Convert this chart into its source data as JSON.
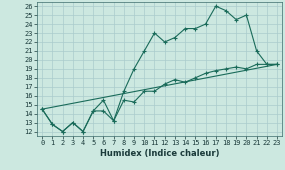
{
  "xlabel": "Humidex (Indice chaleur)",
  "background_color": "#cce8e0",
  "grid_color": "#aacccc",
  "line_color": "#1a6b5a",
  "xlim": [
    -0.5,
    23.5
  ],
  "ylim": [
    11.5,
    26.5
  ],
  "xticks": [
    0,
    1,
    2,
    3,
    4,
    5,
    6,
    7,
    8,
    9,
    10,
    11,
    12,
    13,
    14,
    15,
    16,
    17,
    18,
    19,
    20,
    21,
    22,
    23
  ],
  "yticks": [
    12,
    13,
    14,
    15,
    16,
    17,
    18,
    19,
    20,
    21,
    22,
    23,
    24,
    25,
    26
  ],
  "trend_x": [
    0,
    23
  ],
  "trend_y": [
    14.5,
    19.5
  ],
  "upper_x": [
    0,
    1,
    2,
    3,
    4,
    5,
    6,
    7,
    8,
    9,
    10,
    11,
    12,
    13,
    14,
    15,
    16,
    17,
    18,
    19,
    20,
    21,
    22,
    23
  ],
  "upper_y": [
    14.5,
    12.8,
    12.0,
    13.0,
    12.0,
    14.3,
    15.5,
    13.2,
    16.5,
    19.0,
    21.0,
    23.0,
    22.0,
    22.5,
    23.5,
    23.5,
    24.0,
    26.0,
    25.5,
    24.5,
    25.0,
    21.0,
    19.5,
    19.5
  ],
  "lower_x": [
    0,
    1,
    2,
    3,
    4,
    5,
    6,
    7,
    8,
    9,
    10,
    11,
    12,
    13,
    14,
    15,
    16,
    17,
    18,
    19,
    20,
    21,
    22,
    23
  ],
  "lower_y": [
    14.5,
    12.8,
    12.0,
    13.0,
    12.0,
    14.3,
    14.3,
    13.2,
    15.5,
    15.3,
    16.5,
    16.5,
    17.3,
    17.8,
    17.5,
    18.0,
    18.5,
    18.8,
    19.0,
    19.2,
    19.0,
    19.5,
    19.5,
    19.5
  ],
  "xlabel_fontsize": 6,
  "tick_fontsize": 5
}
